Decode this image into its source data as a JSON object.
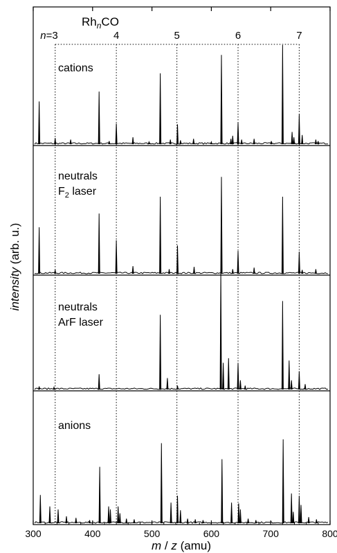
{
  "chart_data": {
    "type": "line",
    "title": "",
    "xlabel": "m / z (amu)",
    "xlabel_parts": {
      "m": "m",
      "slash": " / ",
      "z": "z",
      "unit": " (amu)"
    },
    "ylabel": "intensity (arb. u.)",
    "ylabel_parts": {
      "italic": "intensity",
      "rest": " (arb. u.)"
    },
    "xlim": [
      300,
      800
    ],
    "x_ticks": [
      300,
      400,
      500,
      600,
      700,
      800
    ],
    "x_tick_labels": [
      "300",
      "400",
      "500",
      "600",
      "700",
      "800"
    ],
    "species_label": {
      "base": "Rh",
      "sub": "n",
      "tail": "CO"
    },
    "cluster_size_prefix": "n=",
    "cluster_markers": [
      {
        "n": "3",
        "mz": 337
      },
      {
        "n": "4",
        "mz": 440
      },
      {
        "n": "5",
        "mz": 542
      },
      {
        "n": "6",
        "mz": 645
      },
      {
        "n": "7",
        "mz": 748
      }
    ],
    "grid": false,
    "panels": [
      {
        "name": "cations",
        "label_lines": [
          {
            "text": "cations"
          }
        ],
        "peaks": [
          [
            310,
            0.56
          ],
          [
            337,
            0.08
          ],
          [
            363,
            0.06
          ],
          [
            411,
            0.69
          ],
          [
            428,
            0.04
          ],
          [
            440,
            0.27
          ],
          [
            468,
            0.09
          ],
          [
            495,
            0.03
          ],
          [
            514,
            0.93
          ],
          [
            531,
            0.06
          ],
          [
            543,
            0.26
          ],
          [
            548,
            0.05
          ],
          [
            570,
            0.07
          ],
          [
            600,
            0.03
          ],
          [
            617,
            1.17
          ],
          [
            633,
            0.07
          ],
          [
            636,
            0.11
          ],
          [
            645,
            0.28
          ],
          [
            651,
            0.06
          ],
          [
            672,
            0.07
          ],
          [
            701,
            0.04
          ],
          [
            720,
            1.3
          ],
          [
            736,
            0.16
          ],
          [
            739,
            0.09
          ],
          [
            748,
            0.39
          ],
          [
            753,
            0.12
          ],
          [
            776,
            0.06
          ],
          [
            780,
            0.04
          ]
        ]
      },
      {
        "name": "neutrals-f2",
        "label_lines": [
          {
            "text": "neutrals"
          },
          {
            "base": "F",
            "sub": "2",
            "tail": " laser"
          }
        ],
        "peaks": [
          [
            310,
            0.61
          ],
          [
            337,
            0.05
          ],
          [
            411,
            0.79
          ],
          [
            440,
            0.44
          ],
          [
            468,
            0.1
          ],
          [
            514,
            1.01
          ],
          [
            529,
            0.06
          ],
          [
            543,
            0.37
          ],
          [
            571,
            0.09
          ],
          [
            617,
            1.27
          ],
          [
            636,
            0.06
          ],
          [
            645,
            0.3
          ],
          [
            672,
            0.08
          ],
          [
            720,
            1.01
          ],
          [
            748,
            0.29
          ],
          [
            753,
            0.05
          ],
          [
            776,
            0.06
          ]
        ]
      },
      {
        "name": "neutrals-arf",
        "label_lines": [
          {
            "text": "neutrals"
          },
          {
            "text": "ArF laser"
          }
        ],
        "peaks": [
          [
            310,
            0.04
          ],
          [
            335,
            0.03
          ],
          [
            411,
            0.2
          ],
          [
            514,
            0.98
          ],
          [
            526,
            0.15
          ],
          [
            543,
            0.05
          ],
          [
            616,
            1.58
          ],
          [
            620,
            0.35
          ],
          [
            629,
            0.41
          ],
          [
            645,
            0.35
          ],
          [
            649,
            0.12
          ],
          [
            657,
            0.05
          ],
          [
            720,
            1.16
          ],
          [
            731,
            0.38
          ],
          [
            735,
            0.12
          ],
          [
            748,
            0.24
          ],
          [
            758,
            0.07
          ]
        ]
      },
      {
        "name": "anions",
        "label_lines": [
          {
            "text": "anions"
          }
        ],
        "peaks": [
          [
            312,
            0.37
          ],
          [
            328,
            0.22
          ],
          [
            342,
            0.18
          ],
          [
            356,
            0.09
          ],
          [
            372,
            0.07
          ],
          [
            395,
            0.04
          ],
          [
            412,
            0.74
          ],
          [
            427,
            0.22
          ],
          [
            430,
            0.18
          ],
          [
            443,
            0.22
          ],
          [
            446,
            0.13
          ],
          [
            457,
            0.06
          ],
          [
            470,
            0.05
          ],
          [
            516,
            1.05
          ],
          [
            532,
            0.27
          ],
          [
            543,
            0.36
          ],
          [
            548,
            0.17
          ],
          [
            560,
            0.06
          ],
          [
            573,
            0.05
          ],
          [
            586,
            0.04
          ],
          [
            618,
            0.84
          ],
          [
            634,
            0.27
          ],
          [
            646,
            0.26
          ],
          [
            649,
            0.18
          ],
          [
            662,
            0.06
          ],
          [
            675,
            0.04
          ],
          [
            721,
            1.1
          ],
          [
            735,
            0.39
          ],
          [
            738,
            0.15
          ],
          [
            748,
            0.36
          ],
          [
            751,
            0.24
          ],
          [
            764,
            0.08
          ],
          [
            777,
            0.05
          ]
        ]
      }
    ]
  }
}
